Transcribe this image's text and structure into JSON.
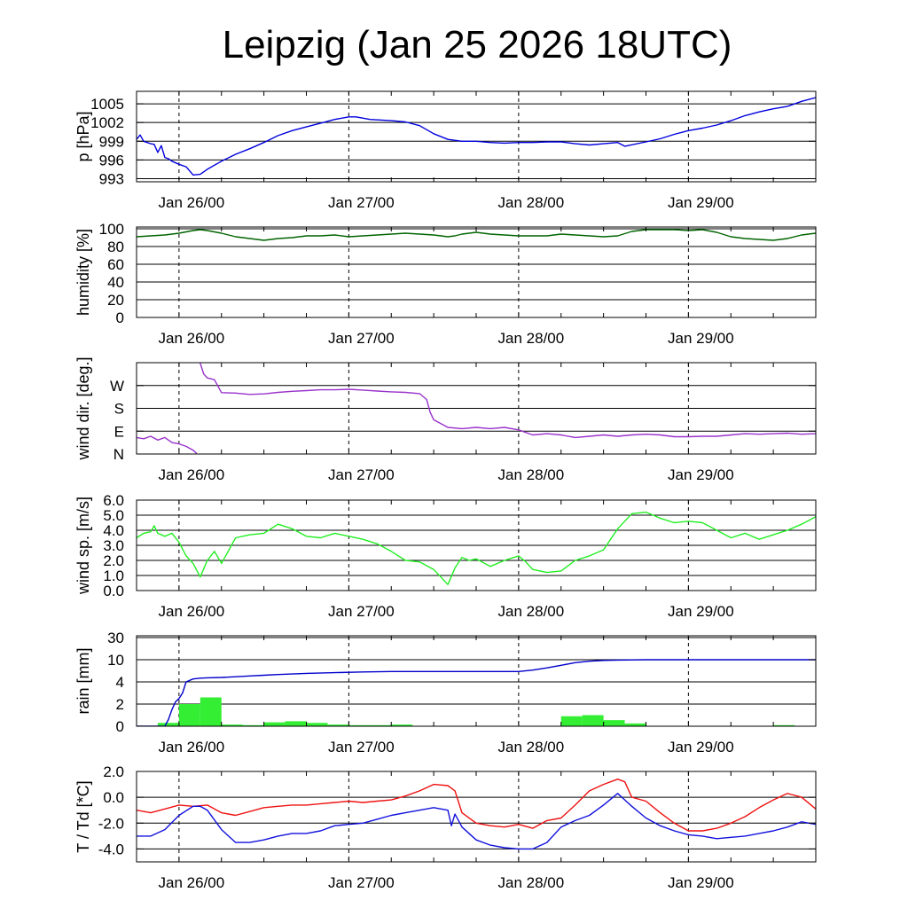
{
  "title": "Leipzig (Jan 25 2026 18UTC)",
  "colors": {
    "pressure": "#0000dd",
    "humidity": "#006400",
    "wind_dir": "#9932cc",
    "wind_speed": "#22ee22",
    "rain_total": "#0000cc",
    "rain_bars": "#33ee33",
    "temperature": "#ee1111",
    "dewpoint": "#1111dd"
  },
  "chart_data": [
    {
      "id": "pressure",
      "type": "line",
      "ylabel": "p [hPa]",
      "yticks": [
        "1005",
        "1002",
        "999",
        "996",
        "993"
      ],
      "ytick_values": [
        1005,
        1002,
        999,
        996,
        993
      ],
      "ylim": [
        992.5,
        1007
      ],
      "xticks": [
        "Jan 26/00",
        "Jan 27/00",
        "Jan 28/00",
        "Jan 29/00"
      ],
      "xtick_hours": [
        6,
        30,
        54,
        78
      ],
      "xlim_hours": [
        0,
        96
      ],
      "series": [
        {
          "name": "pressure",
          "color_key": "pressure",
          "x": [
            0,
            0.5,
            1,
            2,
            2.5,
            3,
            3.5,
            4,
            4.5,
            5,
            6,
            7,
            8,
            9,
            10,
            12,
            14,
            16,
            18,
            20,
            22,
            24,
            26,
            28,
            30,
            31,
            33,
            36,
            38,
            40,
            42,
            44,
            46,
            48,
            50,
            52,
            54,
            56,
            58,
            60,
            62,
            64,
            66,
            68,
            69,
            72,
            74,
            76,
            78,
            80,
            82,
            84,
            86,
            88,
            90,
            92,
            94,
            96
          ],
          "y": [
            999.3,
            1000,
            999,
            998.6,
            998.5,
            997.2,
            998.3,
            996.4,
            996.2,
            995.8,
            995.3,
            994.9,
            993.6,
            993.7,
            994.5,
            995.8,
            996.9,
            997.8,
            998.8,
            999.9,
            1000.7,
            1001.3,
            1001.9,
            1002.5,
            1002.9,
            1002.9,
            1002.5,
            1002.3,
            1002.1,
            1001.5,
            1000.2,
            999.3,
            999,
            999,
            998.8,
            998.7,
            998.8,
            998.8,
            998.9,
            998.9,
            998.6,
            998.4,
            998.6,
            998.8,
            998.2,
            998.9,
            999.4,
            1000.1,
            1000.7,
            1001.1,
            1001.6,
            1002.3,
            1003.1,
            1003.7,
            1004.2,
            1004.6,
            1005.4,
            1006
          ]
        }
      ]
    },
    {
      "id": "humidity",
      "type": "line",
      "ylabel": "humidity [%]",
      "yticks": [
        "100",
        "80",
        "60",
        "40",
        "20",
        "0"
      ],
      "ytick_values": [
        100,
        80,
        60,
        40,
        20,
        0
      ],
      "ylim": [
        0,
        102
      ],
      "xticks": [
        "Jan 26/00",
        "Jan 27/00",
        "Jan 28/00",
        "Jan 29/00"
      ],
      "xtick_hours": [
        6,
        30,
        54,
        78
      ],
      "xlim_hours": [
        0,
        96
      ],
      "series": [
        {
          "name": "humidity",
          "color_key": "humidity",
          "x": [
            0,
            2,
            4,
            6,
            8,
            9,
            10,
            12,
            14,
            16,
            18,
            20,
            22,
            24,
            26,
            28,
            30,
            32,
            34,
            36,
            38,
            40,
            42,
            44,
            45,
            46,
            48,
            50,
            52,
            54,
            56,
            58,
            60,
            62,
            64,
            66,
            68,
            70,
            72,
            74,
            76,
            78,
            80,
            82,
            84,
            86,
            88,
            90,
            92,
            94,
            96
          ],
          "y": [
            91,
            92,
            93,
            95,
            98,
            99,
            98,
            95,
            91,
            89,
            87,
            89,
            90,
            92,
            92,
            93,
            91,
            92,
            93,
            94,
            95,
            94,
            93,
            91,
            92,
            94,
            96,
            94,
            93,
            92,
            92,
            92,
            94,
            93,
            92,
            91,
            92,
            97,
            99,
            99,
            99,
            98,
            99,
            96,
            91,
            89,
            88,
            87,
            89,
            93,
            95
          ]
        }
      ]
    },
    {
      "id": "wind_dir",
      "type": "line",
      "ylabel": "wind dir. [deg.]",
      "yticks": [
        "W",
        "S",
        "E",
        "N"
      ],
      "ytick_values": [
        270,
        180,
        90,
        0
      ],
      "ylim": [
        0,
        360
      ],
      "xticks": [
        "Jan 26/00",
        "Jan 27/00",
        "Jan 28/00",
        "Jan 29/00"
      ],
      "xtick_hours": [
        6,
        30,
        54,
        78
      ],
      "xlim_hours": [
        0,
        96
      ],
      "series": [
        {
          "name": "wind_dir",
          "color_key": "wind_dir",
          "x": [
            0,
            1,
            2,
            3,
            4,
            5,
            6,
            7,
            8,
            8.5
          ],
          "y": [
            65,
            60,
            70,
            55,
            65,
            45,
            40,
            30,
            15,
            2
          ]
        },
        {
          "name": "wind_dir",
          "color_key": "wind_dir",
          "x": [
            9,
            9.5,
            10,
            11,
            12,
            14,
            16,
            18,
            20,
            22,
            24,
            26,
            28,
            30,
            32,
            34,
            36,
            38,
            40,
            41,
            41.5,
            42,
            44,
            46,
            48,
            50,
            52,
            54,
            56,
            58,
            60,
            62,
            64,
            66,
            68,
            70,
            72,
            74,
            76,
            78,
            80,
            82,
            84,
            86,
            88,
            90,
            92,
            94,
            96
          ],
          "y": [
            358,
            315,
            300,
            293,
            242,
            240,
            235,
            237,
            243,
            247,
            250,
            253,
            253,
            255,
            252,
            248,
            245,
            243,
            238,
            215,
            165,
            135,
            105,
            100,
            105,
            100,
            105,
            95,
            75,
            80,
            75,
            65,
            70,
            75,
            70,
            75,
            78,
            75,
            68,
            68,
            70,
            70,
            75,
            80,
            78,
            80,
            82,
            78,
            80
          ]
        }
      ]
    },
    {
      "id": "wind_speed",
      "type": "line",
      "ylabel": "wind sp. [m/s]",
      "yticks": [
        "6.0",
        "5.0",
        "4.0",
        "3.0",
        "2.0",
        "1.0",
        "0.0"
      ],
      "ytick_values": [
        6,
        5,
        4,
        3,
        2,
        1,
        0
      ],
      "ylim": [
        0,
        6
      ],
      "xticks": [
        "Jan 26/00",
        "Jan 27/00",
        "Jan 28/00",
        "Jan 29/00"
      ],
      "xtick_hours": [
        6,
        30,
        54,
        78
      ],
      "xlim_hours": [
        0,
        96
      ],
      "series": [
        {
          "name": "wind_speed",
          "color_key": "wind_speed",
          "x": [
            0,
            1,
            2,
            2.5,
            3,
            4,
            5,
            6,
            7,
            8,
            9,
            10,
            11,
            12,
            14,
            16,
            18,
            20,
            22,
            24,
            26,
            28,
            30,
            32,
            34,
            36,
            38,
            40,
            42,
            44,
            42,
            44,
            45,
            46,
            47,
            48,
            50,
            52,
            54,
            55,
            56,
            58,
            60,
            62,
            64,
            66,
            68,
            70,
            72,
            74,
            76,
            78,
            80,
            82,
            84,
            86,
            88,
            90,
            92,
            94,
            96
          ],
          "y": [
            3.5,
            3.8,
            3.9,
            4.3,
            3.8,
            3.6,
            3.8,
            3.2,
            2.3,
            1.8,
            0.9,
            2.0,
            2.6,
            1.8,
            3.5,
            3.7,
            3.8,
            4.4,
            4.1,
            3.6,
            3.5,
            3.8,
            3.6,
            3.4,
            3.1,
            2.6,
            2.0,
            1.9,
            1.4,
            0.4,
            1.4,
            0.4,
            1.5,
            2.2,
            2.0,
            2.1,
            1.6,
            2.0,
            2.3,
            1.9,
            1.4,
            1.2,
            1.3,
            2.0,
            2.3,
            2.7,
            4.1,
            5.1,
            5.2,
            4.8,
            4.5,
            4.6,
            4.5,
            4.0,
            3.5,
            3.8,
            3.4,
            3.7,
            4.0,
            4.4,
            4.9
          ]
        }
      ]
    },
    {
      "id": "rain",
      "type": "bar",
      "ylabel": "rain [mm]",
      "yticks": [
        "30",
        "10",
        "4",
        "2",
        "0"
      ],
      "ytick_values": [
        30,
        10,
        4,
        2,
        0
      ],
      "ylim": [
        0,
        30
      ],
      "xticks": [
        "Jan 26/00",
        "Jan 27/00",
        "Jan 28/00",
        "Jan 29/00"
      ],
      "xtick_hours": [
        6,
        30,
        54,
        78
      ],
      "xlim_hours": [
        0,
        96
      ],
      "bars": {
        "name": "rain per 3h",
        "color_key": "rain_bars",
        "start_hours": [
          3,
          6,
          9,
          12,
          15,
          18,
          21,
          24,
          27,
          30,
          33,
          36,
          39,
          42,
          45,
          48,
          51,
          54,
          57,
          60,
          63,
          66,
          69,
          72,
          75,
          78,
          81,
          84,
          87,
          90,
          93
        ],
        "values": [
          0.3,
          2.0,
          2.6,
          0.15,
          0.1,
          0.35,
          0.45,
          0.3,
          0.15,
          0.1,
          0.1,
          0.15,
          0,
          0,
          0,
          0,
          0,
          0,
          0,
          0.9,
          1.0,
          0.55,
          0.25,
          0,
          0,
          0,
          0,
          0,
          0,
          0.1,
          0
        ]
      },
      "series": [
        {
          "name": "accumulated rain",
          "color_key": "rain_total",
          "x": [
            0,
            3,
            4,
            4.5,
            5,
            5.5,
            6,
            6.5,
            7,
            8,
            9,
            10,
            12,
            14,
            16,
            18,
            20,
            24,
            28,
            32,
            36,
            40,
            44,
            48,
            52,
            54,
            56,
            58,
            60,
            62,
            64,
            66,
            68,
            72,
            76,
            80,
            84,
            88,
            92,
            96
          ],
          "y": [
            0,
            0,
            0,
            0.6,
            1.5,
            2.2,
            2.5,
            3.0,
            4.0,
            4.8,
            5.0,
            5.1,
            5.2,
            5.4,
            5.6,
            5.8,
            6.0,
            6.3,
            6.5,
            6.7,
            6.8,
            6.8,
            6.8,
            6.8,
            6.8,
            6.8,
            7.2,
            7.8,
            8.5,
            9.2,
            9.6,
            9.8,
            9.9,
            10.0,
            10.0,
            10.0,
            10.0,
            10.0,
            10.0,
            10.0
          ]
        }
      ]
    },
    {
      "id": "temperature",
      "type": "line",
      "ylabel": "T / Td [*C]",
      "yticks": [
        "2.0",
        "0.0",
        "-2.0",
        "-4.0"
      ],
      "ytick_values": [
        2,
        0,
        -2,
        -4
      ],
      "ylim": [
        -5,
        2
      ],
      "xticks": [
        "Jan 26/00",
        "Jan 27/00",
        "Jan 28/00",
        "Jan 29/00"
      ],
      "xtick_hours": [
        6,
        30,
        54,
        78
      ],
      "xlim_hours": [
        0,
        96
      ],
      "series": [
        {
          "name": "T",
          "color_key": "temperature",
          "x": [
            0,
            2,
            4,
            6,
            8,
            10,
            12,
            14,
            16,
            18,
            20,
            22,
            24,
            26,
            28,
            30,
            32,
            34,
            36,
            38,
            40,
            42,
            44,
            45,
            46,
            48,
            50,
            52,
            54,
            56,
            58,
            60,
            62,
            64,
            66,
            68,
            69,
            70,
            72,
            74,
            76,
            78,
            80,
            82,
            84,
            86,
            88,
            90,
            92,
            94,
            96
          ],
          "y": [
            -1.0,
            -1.2,
            -0.9,
            -0.6,
            -0.7,
            -0.6,
            -1.2,
            -1.4,
            -1.1,
            -0.8,
            -0.7,
            -0.6,
            -0.6,
            -0.5,
            -0.4,
            -0.3,
            -0.4,
            -0.3,
            -0.2,
            0.1,
            0.5,
            1.0,
            0.9,
            0.5,
            -1.2,
            -2.0,
            -2.2,
            -2.3,
            -2.1,
            -2.4,
            -1.8,
            -1.6,
            -0.6,
            0.5,
            1.0,
            1.4,
            1.2,
            0.0,
            -0.3,
            -1.2,
            -2.0,
            -2.6,
            -2.6,
            -2.4,
            -2.0,
            -1.5,
            -0.8,
            -0.2,
            0.3,
            0.0,
            -0.9
          ]
        },
        {
          "name": "Td",
          "color_key": "dewpoint",
          "x": [
            0,
            2,
            4,
            6,
            8,
            9,
            10,
            12,
            14,
            16,
            18,
            20,
            22,
            24,
            26,
            28,
            30,
            32,
            34,
            36,
            38,
            40,
            42,
            44,
            44.5,
            45,
            46,
            48,
            50,
            52,
            54,
            56,
            58,
            60,
            62,
            64,
            66,
            68,
            69,
            70,
            72,
            74,
            76,
            78,
            80,
            82,
            84,
            86,
            88,
            90,
            92,
            94,
            96
          ],
          "y": [
            -3.0,
            -3.0,
            -2.5,
            -1.4,
            -0.7,
            -0.7,
            -1.0,
            -2.5,
            -3.5,
            -3.5,
            -3.3,
            -3.0,
            -2.8,
            -2.8,
            -2.6,
            -2.2,
            -2.1,
            -2.0,
            -1.7,
            -1.4,
            -1.2,
            -1.0,
            -0.8,
            -1.0,
            -2.2,
            -1.3,
            -2.3,
            -3.3,
            -3.7,
            -3.9,
            -4.0,
            -4.0,
            -3.5,
            -2.3,
            -1.8,
            -1.4,
            -0.6,
            0.3,
            -0.2,
            -0.7,
            -1.6,
            -2.2,
            -2.6,
            -2.9,
            -3.0,
            -3.2,
            -3.1,
            -3.0,
            -2.8,
            -2.6,
            -2.3,
            -1.9,
            -2.1
          ]
        }
      ]
    }
  ]
}
